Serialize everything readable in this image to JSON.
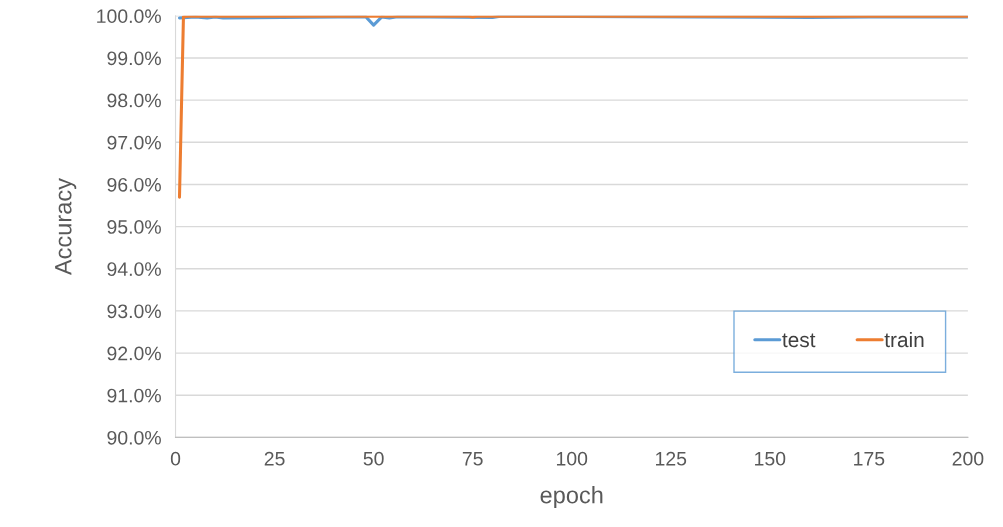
{
  "chart_data": {
    "type": "line",
    "xlabel": "epoch",
    "ylabel": "Accuracy",
    "series": [
      {
        "name": "test",
        "color": "#5b9bd5",
        "x": [
          1,
          5,
          8,
          10,
          12,
          20,
          30,
          48,
          50,
          52,
          54,
          56,
          80,
          82,
          100,
          120,
          140,
          160,
          175,
          200
        ],
        "values": [
          99.95,
          99.97,
          99.95,
          99.97,
          99.95,
          null,
          null,
          99.98,
          99.78,
          99.97,
          99.95,
          99.98,
          99.96,
          99.99,
          null,
          null,
          null,
          99.96,
          99.97,
          99.97
        ]
      },
      {
        "name": "train",
        "color": "#ed7d31",
        "x": [
          1,
          2,
          3,
          25,
          50,
          74,
          75,
          76,
          100,
          150,
          200
        ],
        "values": [
          95.7,
          99.98,
          99.99,
          99.99,
          99.99,
          99.99,
          99.97,
          99.99,
          99.99,
          99.99,
          99.99
        ]
      }
    ],
    "xlim": [
      0,
      200
    ],
    "xticks": [
      0,
      25,
      50,
      75,
      100,
      125,
      150,
      175,
      200
    ],
    "ylim": [
      90,
      100
    ],
    "yticks": [
      {
        "value": 90,
        "label": "90.0%"
      },
      {
        "value": 91,
        "label": "91.0%"
      },
      {
        "value": 92,
        "label": "92.0%"
      },
      {
        "value": 93,
        "label": "93.0%"
      },
      {
        "value": 94,
        "label": "94.0%"
      },
      {
        "value": 95,
        "label": "95.0%"
      },
      {
        "value": 96,
        "label": "96.0%"
      },
      {
        "value": 97,
        "label": "97.0%"
      },
      {
        "value": 98,
        "label": "98.0%"
      },
      {
        "value": 99,
        "label": "99.0%"
      },
      {
        "value": 100,
        "label": "100.0%"
      }
    ],
    "grid": "y",
    "legend": "bottom right",
    "marker": "none",
    "line_style": "solid"
  }
}
